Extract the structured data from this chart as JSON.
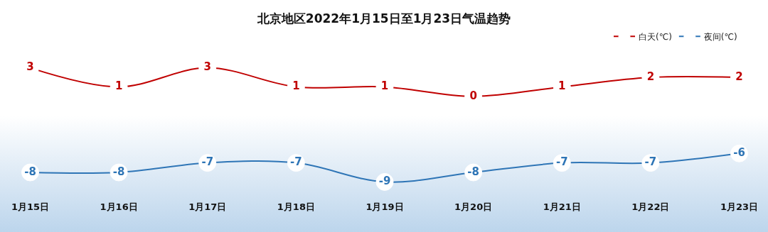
{
  "chart_data": {
    "type": "line",
    "title": "北京地区2022年1月15日至1月23日气温趋势",
    "categories": [
      "1月15日",
      "1月16日",
      "1月17日",
      "1月18日",
      "1月19日",
      "1月20日",
      "1月21日",
      "1月22日",
      "1月23日"
    ],
    "series": [
      {
        "name": "白天(℃)",
        "color": "#c00000",
        "values": [
          3,
          1,
          3,
          1,
          1,
          0,
          1,
          2,
          2
        ]
      },
      {
        "name": "夜间(℃)",
        "color": "#2e75b6",
        "values": [
          -8,
          -8,
          -7,
          -7,
          -9,
          -8,
          -7,
          -7,
          -6
        ]
      }
    ],
    "data_labels": true,
    "marker": "circle",
    "legend": "top right",
    "tick_labels": "x"
  }
}
